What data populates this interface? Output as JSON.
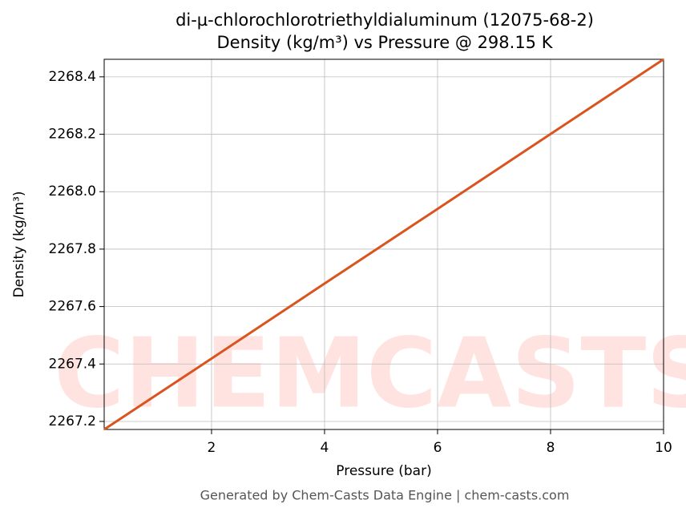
{
  "chart_data": {
    "type": "line",
    "title": "di-µ-chlorochlorotriethyldialuminum (12075-68-2)",
    "subtitle": "Density (kg/m³) vs Pressure @ 298.15 K",
    "x_label": "Pressure (bar)",
    "y_label": "Density (kg/m³)",
    "footer": "Generated by Chem-Casts Data Engine | chem-casts.com",
    "watermark": "CHEMCASTS",
    "x": [
      0.1,
      2,
      4,
      6,
      8,
      10
    ],
    "series": [
      {
        "name": "Density",
        "color": "#d9541e",
        "values": [
          2267.172,
          2267.419,
          2267.68,
          2267.94,
          2268.201,
          2268.461
        ]
      }
    ],
    "xlim": [
      0.1,
      10
    ],
    "ylim": [
      2267.172,
      2268.461
    ],
    "xticks": [
      2,
      4,
      6,
      8,
      10
    ],
    "yticks": [
      2267.2,
      2267.4,
      2267.6,
      2267.8,
      {
        "value": 2268.0,
        "label": "2268.0"
      },
      2268.2,
      2268.4
    ],
    "grid": true
  }
}
